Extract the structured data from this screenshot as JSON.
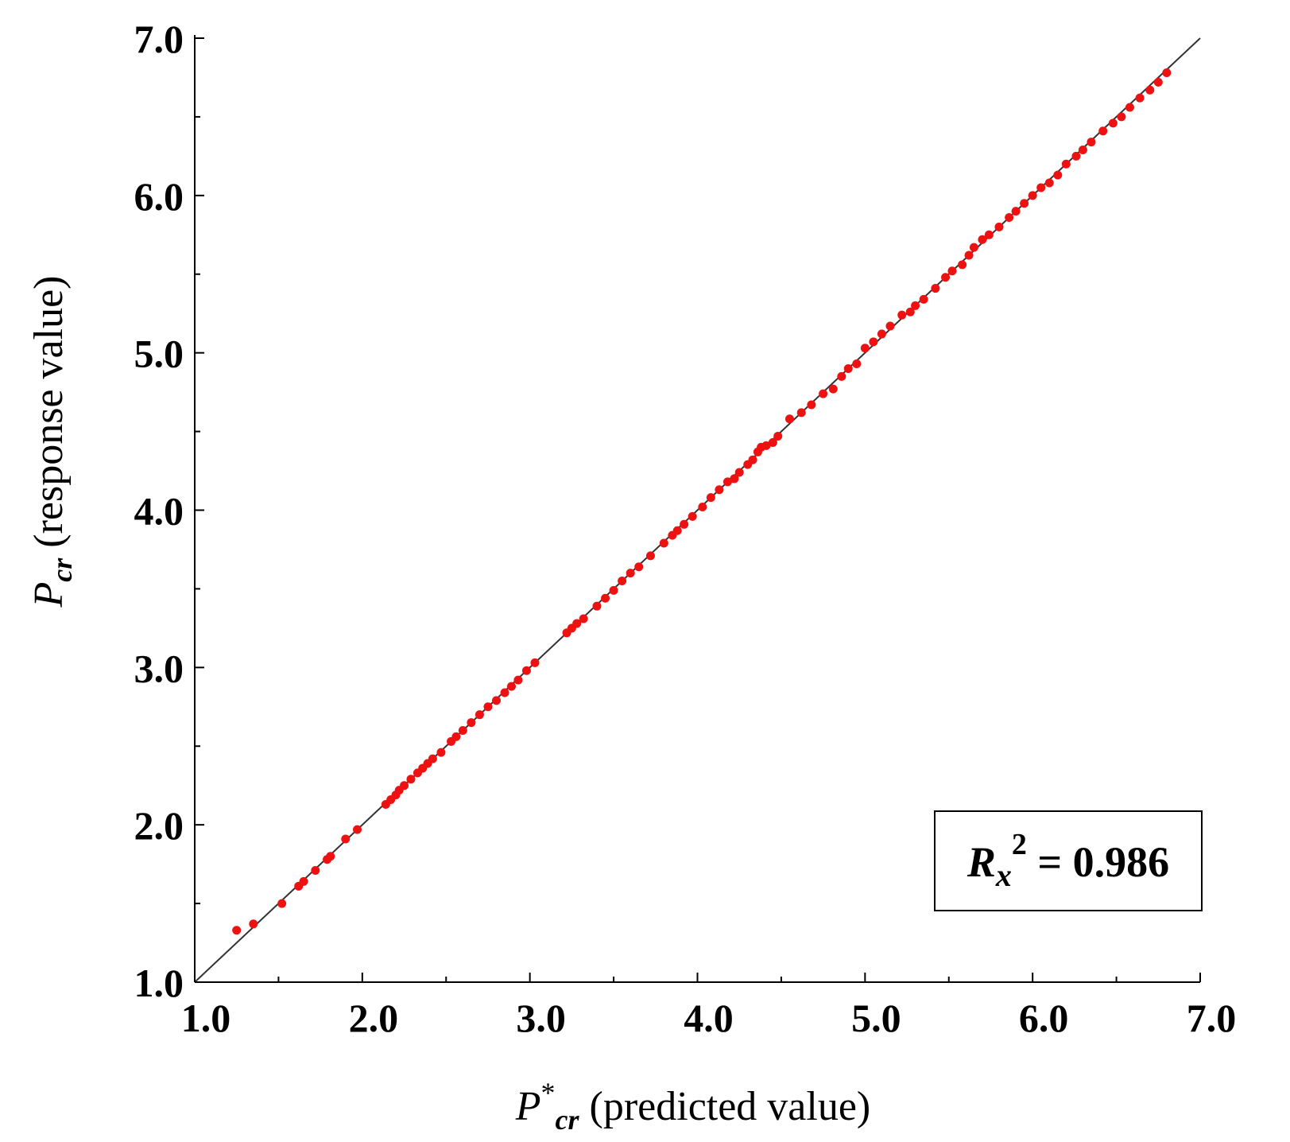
{
  "chart_data": {
    "type": "scatter",
    "x_label": {
      "symbol": "P",
      "superscript": "*",
      "subscript": "cr",
      "text": " (predicted value)"
    },
    "y_label": {
      "symbol": "P",
      "subscript": "cr",
      "text": " (response value)"
    },
    "xlim": [
      1.0,
      7.0
    ],
    "ylim": [
      1.0,
      7.0
    ],
    "x_ticks": [
      "1.0",
      "2.0",
      "3.0",
      "4.0",
      "5.0",
      "6.0",
      "7.0"
    ],
    "y_ticks": [
      "1.0",
      "2.0",
      "3.0",
      "4.0",
      "5.0",
      "6.0",
      "7.0"
    ],
    "grid": false,
    "reference_line": {
      "type": "identity",
      "from": [
        1.0,
        1.0
      ],
      "to": [
        7.0,
        7.0
      ],
      "color": "#333333"
    },
    "annotation": {
      "symbol": "R",
      "subscript": "x",
      "superscript": "2",
      "text": " = 0.986",
      "placement": "bottom-right",
      "boxed": true
    },
    "marker_color": "#ee1111",
    "x": [
      1.25,
      1.35,
      1.52,
      1.62,
      1.65,
      1.72,
      1.79,
      1.81,
      1.9,
      1.97,
      2.14,
      2.17,
      2.2,
      2.22,
      2.25,
      2.29,
      2.33,
      2.36,
      2.39,
      2.42,
      2.47,
      2.53,
      2.56,
      2.6,
      2.65,
      2.7,
      2.75,
      2.8,
      2.85,
      2.89,
      2.93,
      2.98,
      3.03,
      3.22,
      3.25,
      3.28,
      3.32,
      3.4,
      3.45,
      3.5,
      3.55,
      3.6,
      3.65,
      3.72,
      3.8,
      3.85,
      3.88,
      3.92,
      3.97,
      4.03,
      4.08,
      4.13,
      4.18,
      4.22,
      4.25,
      4.3,
      4.33,
      4.36,
      4.38,
      4.41,
      4.45,
      4.48,
      4.55,
      4.62,
      4.68,
      4.75,
      4.81,
      4.86,
      4.9,
      4.95,
      5.0,
      5.05,
      5.1,
      5.15,
      5.22,
      5.27,
      5.3,
      5.35,
      5.42,
      5.48,
      5.52,
      5.58,
      5.62,
      5.65,
      5.7,
      5.74,
      5.8,
      5.86,
      5.9,
      5.95,
      6.0,
      6.05,
      6.1,
      6.15,
      6.2,
      6.26,
      6.3,
      6.35,
      6.42,
      6.48,
      6.53,
      6.58,
      6.64,
      6.7,
      6.75,
      6.8
    ],
    "y": [
      1.33,
      1.37,
      1.5,
      1.61,
      1.64,
      1.71,
      1.78,
      1.8,
      1.91,
      1.97,
      2.13,
      2.16,
      2.19,
      2.22,
      2.25,
      2.29,
      2.33,
      2.36,
      2.39,
      2.42,
      2.46,
      2.53,
      2.56,
      2.6,
      2.65,
      2.7,
      2.75,
      2.79,
      2.84,
      2.88,
      2.92,
      2.98,
      3.03,
      3.22,
      3.25,
      3.28,
      3.31,
      3.39,
      3.44,
      3.49,
      3.55,
      3.6,
      3.64,
      3.71,
      3.79,
      3.84,
      3.87,
      3.91,
      3.96,
      4.02,
      4.08,
      4.13,
      4.18,
      4.2,
      4.24,
      4.29,
      4.32,
      4.37,
      4.4,
      4.41,
      4.43,
      4.47,
      4.58,
      4.62,
      4.67,
      4.74,
      4.77,
      4.85,
      4.9,
      4.93,
      5.03,
      5.07,
      5.12,
      5.17,
      5.24,
      5.26,
      5.3,
      5.34,
      5.41,
      5.48,
      5.52,
      5.56,
      5.62,
      5.67,
      5.72,
      5.75,
      5.8,
      5.86,
      5.9,
      5.95,
      6.0,
      6.05,
      6.08,
      6.13,
      6.2,
      6.25,
      6.29,
      6.34,
      6.41,
      6.46,
      6.5,
      6.56,
      6.62,
      6.67,
      6.72,
      6.78
    ]
  }
}
